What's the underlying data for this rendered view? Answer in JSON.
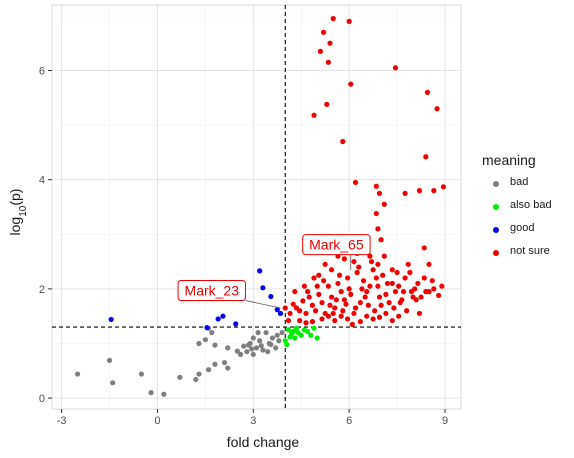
{
  "chart_data": {
    "type": "scatter",
    "xlabel": "fold change",
    "ylabel": "log10(p)",
    "xlim": [
      -3.3,
      9.5
    ],
    "ylim": [
      -0.2,
      7.2
    ],
    "xticks": [
      -3,
      0,
      3,
      6,
      9
    ],
    "yticks": [
      0,
      2,
      4,
      6
    ],
    "xtick_labels": [
      "-3",
      "0",
      "3",
      "6",
      "9"
    ],
    "ytick_labels": [
      "0",
      "2",
      "4",
      "6"
    ],
    "grid": true,
    "legend_title": "meaning",
    "legend_position": "right",
    "reference_lines": {
      "vertical_x": 4,
      "horizontal_y": 1.3
    },
    "series": [
      {
        "name": "bad",
        "color": "#7f7f7f",
        "points": [
          [
            -2.5,
            0.44
          ],
          [
            -1.5,
            0.69
          ],
          [
            -1.4,
            0.28
          ],
          [
            -0.5,
            0.44
          ],
          [
            -0.2,
            0.1
          ],
          [
            0.2,
            0.07
          ],
          [
            0.7,
            0.38
          ],
          [
            1.2,
            0.34
          ],
          [
            1.3,
            0.44
          ],
          [
            1.6,
            0.52
          ],
          [
            1.8,
            0.62
          ],
          [
            1.3,
            1.0
          ],
          [
            1.5,
            1.07
          ],
          [
            1.8,
            0.97
          ],
          [
            2.2,
            0.92
          ],
          [
            2.5,
            0.86
          ],
          [
            2.6,
            0.8
          ],
          [
            1.7,
            1.2
          ],
          [
            1.6,
            1.28
          ],
          [
            2.1,
            0.65
          ],
          [
            2.2,
            0.55
          ],
          [
            2.7,
            0.95
          ],
          [
            2.8,
            0.85
          ],
          [
            2.9,
            1.0
          ],
          [
            3.0,
            1.1
          ],
          [
            3.1,
            0.92
          ],
          [
            3.2,
            1.05
          ],
          [
            3.3,
            0.88
          ],
          [
            3.4,
            1.2
          ],
          [
            3.5,
            1.0
          ],
          [
            3.6,
            1.1
          ],
          [
            3.7,
            0.92
          ],
          [
            3.8,
            1.05
          ],
          [
            3.9,
            1.2
          ],
          [
            3.0,
            0.8
          ],
          [
            2.85,
            0.97
          ],
          [
            3.15,
            1.2
          ],
          [
            3.45,
            0.85
          ],
          [
            3.75,
            1.15
          ],
          [
            3.25,
            0.96
          ],
          [
            2.95,
            0.9
          ],
          [
            3.55,
            0.98
          ]
        ]
      },
      {
        "name": "also bad",
        "color": "#00ee00",
        "points": [
          [
            4.0,
            1.05
          ],
          [
            4.1,
            1.25
          ],
          [
            4.15,
            1.12
          ],
          [
            4.2,
            1.18
          ],
          [
            4.3,
            1.1
          ],
          [
            4.35,
            1.28
          ],
          [
            4.4,
            1.2
          ],
          [
            4.5,
            1.15
          ],
          [
            4.6,
            1.25
          ],
          [
            4.7,
            1.22
          ],
          [
            4.8,
            1.15
          ],
          [
            4.9,
            1.28
          ],
          [
            5.0,
            1.1
          ],
          [
            4.25,
            1.22
          ],
          [
            4.05,
            0.98
          ]
        ]
      },
      {
        "name": "good",
        "color": "#0000ee",
        "points": [
          [
            -1.45,
            1.44
          ],
          [
            1.55,
            1.29
          ],
          [
            1.9,
            1.45
          ],
          [
            2.05,
            1.5
          ],
          [
            2.45,
            1.36
          ],
          [
            3.2,
            2.33
          ],
          [
            3.3,
            2.02
          ],
          [
            3.55,
            1.86
          ],
          [
            3.75,
            1.62
          ],
          [
            3.85,
            1.55
          ]
        ]
      },
      {
        "name": "not sure",
        "color": "#ee0000",
        "points": [
          [
            5.5,
            6.95
          ],
          [
            6.0,
            6.9
          ],
          [
            5.2,
            6.7
          ],
          [
            5.4,
            6.5
          ],
          [
            5.1,
            6.35
          ],
          [
            5.35,
            6.15
          ],
          [
            7.45,
            6.05
          ],
          [
            6.05,
            5.75
          ],
          [
            8.45,
            5.6
          ],
          [
            5.3,
            5.38
          ],
          [
            8.75,
            5.3
          ],
          [
            4.9,
            5.18
          ],
          [
            5.8,
            4.7
          ],
          [
            8.4,
            4.42
          ],
          [
            8.95,
            3.87
          ],
          [
            6.2,
            3.95
          ],
          [
            6.85,
            3.88
          ],
          [
            8.65,
            3.8
          ],
          [
            8.2,
            3.8
          ],
          [
            6.95,
            3.75
          ],
          [
            7.75,
            3.75
          ],
          [
            7.1,
            3.55
          ],
          [
            6.85,
            3.38
          ],
          [
            6.9,
            3.1
          ],
          [
            7.0,
            2.9
          ],
          [
            6.55,
            2.85
          ],
          [
            8.35,
            2.75
          ],
          [
            8.5,
            2.45
          ],
          [
            6.9,
            2.45
          ],
          [
            7.35,
            2.35
          ],
          [
            4.15,
            1.55
          ],
          [
            4.25,
            1.72
          ],
          [
            4.35,
            1.65
          ],
          [
            4.45,
            1.6
          ],
          [
            4.55,
            1.78
          ],
          [
            4.65,
            1.55
          ],
          [
            4.75,
            1.85
          ],
          [
            4.85,
            1.7
          ],
          [
            4.95,
            1.6
          ],
          [
            5.05,
            1.9
          ],
          [
            5.15,
            1.75
          ],
          [
            5.25,
            1.55
          ],
          [
            5.35,
            2.05
          ],
          [
            5.45,
            1.85
          ],
          [
            5.55,
            1.65
          ],
          [
            5.65,
            2.1
          ],
          [
            5.75,
            1.95
          ],
          [
            5.85,
            1.8
          ],
          [
            5.95,
            2.2
          ],
          [
            6.05,
            1.9
          ],
          [
            6.15,
            2.5
          ],
          [
            6.25,
            2.3
          ],
          [
            6.35,
            1.75
          ],
          [
            6.45,
            2.15
          ],
          [
            6.55,
            1.95
          ],
          [
            6.65,
            2.05
          ],
          [
            6.75,
            2.35
          ],
          [
            6.85,
            2.2
          ],
          [
            6.95,
            1.85
          ],
          [
            7.05,
            2.25
          ],
          [
            7.15,
            1.9
          ],
          [
            7.25,
            1.75
          ],
          [
            7.35,
            2.1
          ],
          [
            7.45,
            1.95
          ],
          [
            7.55,
            2.05
          ],
          [
            7.65,
            1.8
          ],
          [
            7.75,
            2.2
          ],
          [
            7.85,
            2.45
          ],
          [
            7.95,
            1.95
          ],
          [
            8.05,
            2.0
          ],
          [
            8.15,
            2.1
          ],
          [
            8.25,
            1.85
          ],
          [
            8.35,
            2.2
          ],
          [
            8.5,
            1.95
          ],
          [
            8.65,
            2.0
          ],
          [
            8.8,
            1.88
          ],
          [
            8.9,
            2.05
          ],
          [
            5.05,
            2.25
          ],
          [
            5.25,
            2.45
          ],
          [
            5.45,
            2.35
          ],
          [
            5.65,
            2.6
          ],
          [
            5.85,
            2.55
          ],
          [
            6.05,
            2.7
          ],
          [
            6.25,
            2.65
          ],
          [
            6.45,
            2.8
          ],
          [
            6.65,
            2.6
          ],
          [
            5.15,
            1.45
          ],
          [
            5.35,
            1.5
          ],
          [
            5.55,
            1.42
          ],
          [
            5.75,
            1.5
          ],
          [
            5.95,
            1.45
          ],
          [
            6.15,
            1.55
          ],
          [
            6.35,
            1.4
          ],
          [
            6.55,
            1.5
          ],
          [
            6.75,
            1.45
          ],
          [
            6.95,
            1.48
          ],
          [
            7.15,
            1.55
          ],
          [
            7.35,
            1.42
          ],
          [
            7.55,
            1.5
          ],
          [
            4.45,
            1.42
          ],
          [
            4.65,
            1.38
          ],
          [
            4.85,
            1.4
          ],
          [
            5.0,
            2.05
          ],
          [
            5.2,
            2.15
          ],
          [
            5.4,
            1.7
          ],
          [
            5.6,
            1.8
          ],
          [
            5.8,
            1.6
          ],
          [
            6.0,
            2.0
          ],
          [
            6.2,
            1.65
          ],
          [
            6.4,
            2.0
          ],
          [
            6.6,
            1.7
          ],
          [
            6.8,
            1.6
          ],
          [
            7.0,
            1.7
          ],
          [
            7.2,
            2.1
          ],
          [
            7.4,
            1.65
          ],
          [
            7.6,
            1.75
          ],
          [
            7.8,
            1.6
          ],
          [
            8.0,
            1.85
          ],
          [
            8.2,
            1.55
          ],
          [
            8.4,
            1.95
          ],
          [
            4.3,
            1.95
          ],
          [
            4.6,
            2.05
          ],
          [
            4.9,
            2.2
          ],
          [
            5.7,
            2.25
          ],
          [
            6.3,
            2.4
          ],
          [
            6.7,
            2.5
          ],
          [
            7.1,
            2.6
          ],
          [
            7.5,
            2.3
          ],
          [
            6.1,
            1.35
          ],
          [
            4.0,
            1.65
          ],
          [
            4.1,
            1.42
          ],
          [
            5.9,
            1.72
          ],
          [
            6.5,
            1.85
          ],
          [
            7.9,
            2.3
          ],
          [
            8.1,
            1.8
          ],
          [
            8.6,
            2.15
          ],
          [
            4.7,
            1.95
          ],
          [
            5.5,
            1.55
          ],
          [
            6.9,
            2.05
          ],
          [
            7.7,
            1.95
          ]
        ]
      }
    ],
    "annotations": [
      {
        "label": "Mark_23",
        "point": [
          3.85,
          1.65
        ],
        "label_at": [
          1.7,
          1.97
        ]
      },
      {
        "label": "Mark_65",
        "point": [
          6.05,
          2.35
        ],
        "label_at": [
          5.6,
          2.81
        ]
      }
    ]
  }
}
